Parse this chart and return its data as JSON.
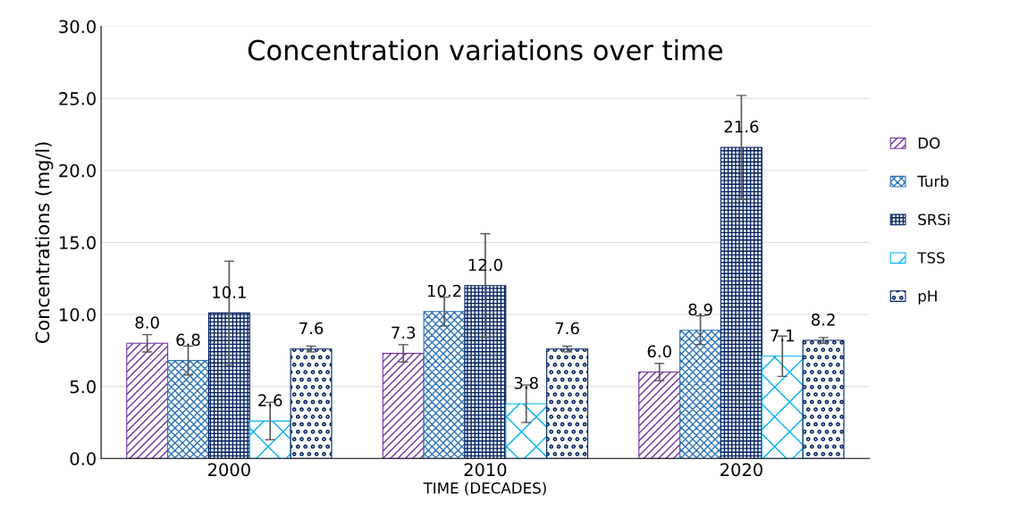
{
  "chart_data": {
    "type": "bar",
    "title": "Concentration variations over time",
    "xlabel": "TIME (DECADES)",
    "ylabel": "Concentrations (mg/l)",
    "categories": [
      "2000",
      "2010",
      "2020"
    ],
    "series": [
      {
        "name": "DO",
        "color": "#7030a0",
        "values": [
          8.0,
          7.3,
          6.0
        ],
        "value_labels": [
          "8.0",
          "7.3",
          "6.0"
        ],
        "errors": [
          0.6,
          0.6,
          0.6
        ]
      },
      {
        "name": "Turb",
        "color": "#2e75b6",
        "values": [
          6.8,
          10.2,
          8.9
        ],
        "value_labels": [
          "6.8",
          "10.2",
          "8.9"
        ],
        "errors": [
          1.0,
          1.0,
          1.0
        ]
      },
      {
        "name": "SRSi",
        "color": "#002060",
        "values": [
          10.1,
          12.0,
          21.6
        ],
        "value_labels": [
          "10.1",
          "12.0",
          "21.6"
        ],
        "errors": [
          3.6,
          3.6,
          3.6
        ]
      },
      {
        "name": "TSS",
        "color": "#00b0f0",
        "values": [
          2.6,
          3.8,
          7.1
        ],
        "value_labels": [
          "2.6",
          "3.8",
          "7.1"
        ],
        "errors": [
          1.3,
          1.3,
          1.4
        ]
      },
      {
        "name": "pH",
        "color": "#002060",
        "values": [
          7.6,
          7.6,
          8.2
        ],
        "value_labels": [
          "7.6",
          "7.6",
          "8.2"
        ],
        "errors": [
          0.2,
          0.2,
          0.2
        ]
      }
    ],
    "ylim": [
      0,
      30
    ],
    "yticks": [
      {
        "value": 0,
        "label": "0.0"
      },
      {
        "value": 5,
        "label": "5.0"
      },
      {
        "value": 10,
        "label": "10.0"
      },
      {
        "value": 15,
        "label": "15.0"
      },
      {
        "value": 20,
        "label": "20.0"
      },
      {
        "value": 25,
        "label": "25.0"
      },
      {
        "value": 30,
        "label": "30.0"
      }
    ],
    "grid": "y",
    "legend": "right"
  }
}
